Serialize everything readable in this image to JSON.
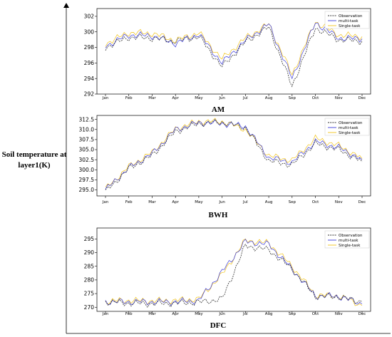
{
  "y_axis_label_line1": "Soil temperature at",
  "y_axis_label_line2": "layer1(K)",
  "months": [
    "Jan",
    "Feb",
    "Mar",
    "Apr",
    "May",
    "Jun",
    "Jul",
    "Aug",
    "Sep",
    "Oct",
    "Nov",
    "Dec"
  ],
  "colors": {
    "Observation": "#333333",
    "multi-task": "#3b3bd9",
    "Single-task": "#f2c318"
  },
  "chart_data": [
    {
      "type": "line",
      "title": "AM",
      "x": [
        "Jan",
        "Feb",
        "Mar",
        "Apr",
        "May",
        "Jun",
        "Jul",
        "Aug",
        "Sep",
        "Oct",
        "Nov",
        "Dec"
      ],
      "ylim": [
        292,
        303
      ],
      "yticks": [
        "292",
        "294",
        "296",
        "298",
        "300",
        "302"
      ],
      "ytick_values": [
        292,
        294,
        296,
        298,
        300,
        302
      ],
      "legend": "top-right",
      "series": [
        {
          "name": "Observation",
          "values": [
            298.0,
            299.3,
            299.2,
            298.8,
            299.4,
            295.5,
            298.7,
            300.6,
            293.0,
            300.5,
            299.0,
            298.8
          ]
        },
        {
          "name": "multi-task",
          "values": [
            298.2,
            299.6,
            299.5,
            298.5,
            299.7,
            296.0,
            298.9,
            301.0,
            294.0,
            301.2,
            299.2,
            299.1
          ]
        },
        {
          "name": "Single-task",
          "values": [
            298.5,
            299.9,
            299.8,
            298.9,
            299.9,
            296.5,
            299.2,
            301.0,
            294.5,
            301.3,
            299.6,
            299.4
          ]
        }
      ]
    },
    {
      "type": "line",
      "title": "BWH",
      "x": [
        "Jan",
        "Feb",
        "Mar",
        "Apr",
        "May",
        "Jun",
        "Jul",
        "Aug",
        "Sep",
        "Oct",
        "Nov",
        "Dec"
      ],
      "ylim": [
        293.5,
        313.5
      ],
      "yticks": [
        "295.0",
        "297.5",
        "300.0",
        "302.5",
        "305.0",
        "307.5",
        "310.0",
        "312.5"
      ],
      "ytick_values": [
        295.0,
        297.5,
        300.0,
        302.5,
        305.0,
        307.5,
        310.0,
        312.5
      ],
      "legend": "top-right",
      "series": [
        {
          "name": "Observation",
          "values": [
            294.5,
            300.3,
            303.5,
            309.5,
            311.5,
            311.8,
            310.5,
            302.2,
            301.2,
            306.5,
            305.0,
            302.0
          ]
        },
        {
          "name": "multi-task",
          "values": [
            295.0,
            300.5,
            304.0,
            310.0,
            311.7,
            311.5,
            310.8,
            303.0,
            301.8,
            307.0,
            305.5,
            302.5
          ]
        },
        {
          "name": "Single-task",
          "values": [
            295.2,
            300.8,
            304.3,
            310.2,
            312.0,
            312.0,
            310.0,
            303.5,
            302.3,
            307.8,
            306.0,
            302.8
          ]
        }
      ]
    },
    {
      "type": "line",
      "title": "DFC",
      "x": [
        "Jan",
        "Feb",
        "Mar",
        "Apr",
        "May",
        "Jun",
        "Jul",
        "Aug",
        "Sep",
        "Oct",
        "Nov",
        "Dec"
      ],
      "ylim": [
        268.5,
        299
      ],
      "yticks": [
        "270",
        "275",
        "280",
        "285",
        "290",
        "295"
      ],
      "ytick_values": [
        270,
        275,
        280,
        285,
        290,
        295
      ],
      "legend": "top-right",
      "series": [
        {
          "name": "Observation",
          "values": [
            272.0,
            271.5,
            271.3,
            271.5,
            271.8,
            273.0,
            292.5,
            291.0,
            284.0,
            274.0,
            273.8,
            272.0
          ]
        },
        {
          "name": "multi-task",
          "values": [
            272.0,
            272.0,
            272.0,
            272.0,
            272.5,
            283.0,
            294.0,
            293.0,
            284.0,
            274.2,
            274.0,
            271.2
          ]
        },
        {
          "name": "Single-task",
          "values": [
            272.2,
            272.5,
            272.3,
            272.5,
            273.0,
            282.0,
            294.5,
            293.5,
            285.0,
            274.5,
            274.2,
            270.6
          ]
        }
      ]
    }
  ]
}
